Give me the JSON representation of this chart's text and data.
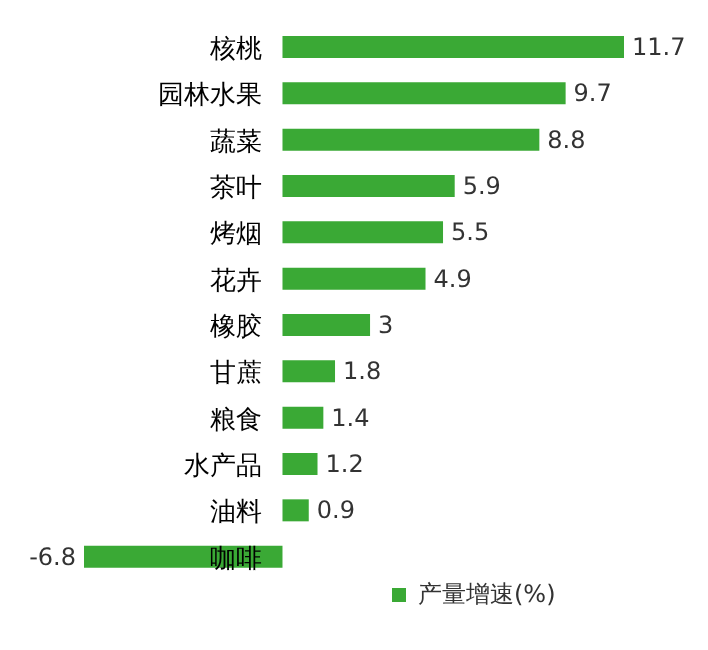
{
  "chart_data": {
    "type": "bar",
    "orientation": "horizontal",
    "categories": [
      "核桃",
      "园林水果",
      "蔬菜",
      "茶叶",
      "烤烟",
      "花卉",
      "橡胶",
      "甘蔗",
      "粮食",
      "水产品",
      "油料",
      "咖啡"
    ],
    "series": [
      {
        "name": "产量增速(%)",
        "color": "#3aa935",
        "values": [
          11.7,
          9.7,
          8.8,
          5.9,
          5.5,
          4.9,
          3,
          1.8,
          1.4,
          1.2,
          0.9,
          -6.8
        ]
      }
    ],
    "data_labels": true,
    "legend": "bottom right",
    "grid": false
  }
}
